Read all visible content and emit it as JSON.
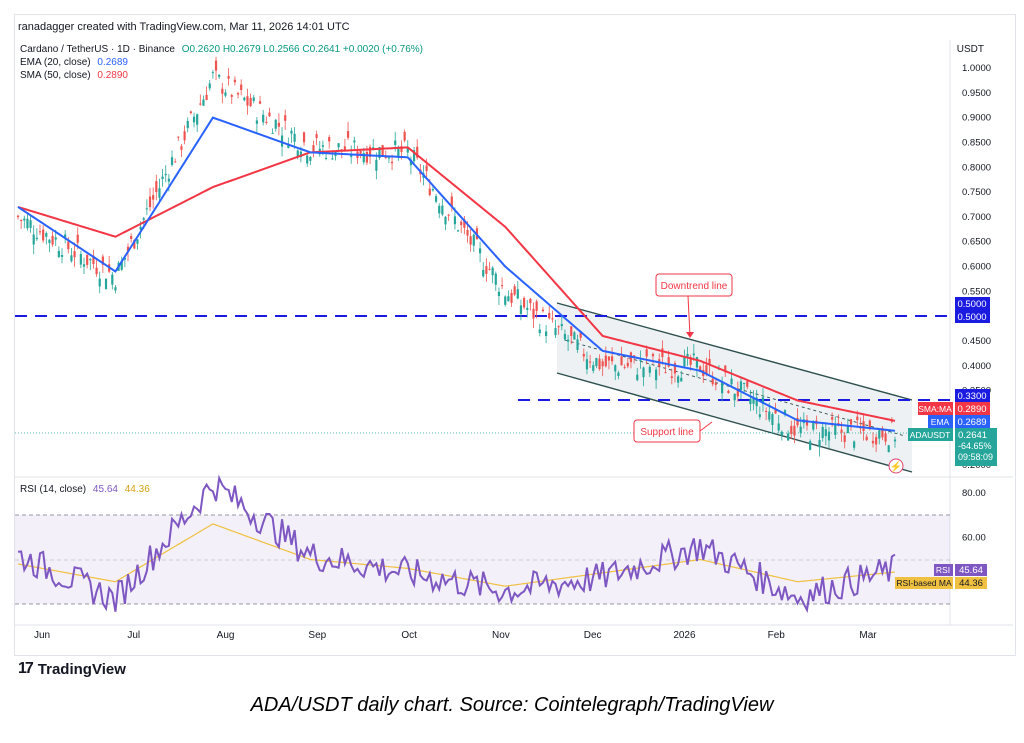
{
  "header": {
    "meta": "ranadagger created with TradingView.com, Mar 11, 2026 14:01 UTC"
  },
  "legend": {
    "symbol": "Cardano / TetherUS · 1D · Binance",
    "ohlc": "O0.2620 H0.2679 L0.2566 C0.2641 +0.0020 (+0.76%)",
    "ema_label": "EMA (20, close)",
    "ema_value": "0.2689",
    "sma_label": "SMA (50, close)",
    "sma_value": "0.2890",
    "rsi_label": "RSI (14, close)",
    "rsi_value": "45.64",
    "rsi_ma_value": "44.36"
  },
  "price_axis": {
    "unit": "USDT",
    "ticks": [
      "1.0000",
      "0.9500",
      "0.9000",
      "0.8500",
      "0.8000",
      "0.7500",
      "0.7000",
      "0.6500",
      "0.6000",
      "0.5500",
      "0.4500",
      "0.4000",
      "0.3500",
      "0.2500",
      "0.2000"
    ]
  },
  "rsi_axis": {
    "ticks": [
      "80.00",
      "60.00"
    ]
  },
  "time_axis": {
    "labels": [
      "Jun",
      "Jul",
      "Aug",
      "Sep",
      "Oct",
      "Nov",
      "Dec",
      "2026",
      "Feb",
      "Mar"
    ]
  },
  "price_tags": {
    "level_050_a": "0.5000",
    "level_050_b": "0.5000",
    "level_033": "0.3300",
    "sma_tag_name": "SMA:MA",
    "sma_tag_value": "0.2890",
    "ema_tag_name": "EMA",
    "ema_tag_value": "0.2689",
    "symbol_tag_name": "ADAUSDT",
    "symbol_tag_value": "0.2641",
    "symbol_tag_change": "-64.65%",
    "countdown": "09:58:09",
    "rsi_tag_name": "RSI",
    "rsi_tag_value": "45.64",
    "rsi_ma_tag_name": "RSI-based MA",
    "rsi_ma_tag_value": "44.36"
  },
  "annotations": {
    "downtrend": "Downtrend line",
    "support": "Support line"
  },
  "brand": {
    "name": "TradingView"
  },
  "caption": "ADA/USDT daily chart. Source: Cointelegraph/TradingView",
  "colors": {
    "up": "#26a69a",
    "down": "#ef5350",
    "ema": "#2962ff",
    "sma": "#f23645",
    "rsi": "#7e57c2",
    "rsi_ma": "#f0c040",
    "level": "#1a1ae0",
    "channel": "#2e4f4f"
  },
  "chart_data": [
    {
      "type": "line",
      "x": [
        "Jun",
        "Jul",
        "Aug",
        "Sep",
        "Oct",
        "Nov",
        "Dec",
        "2026",
        "Feb",
        "Mar"
      ],
      "series": [
        {
          "name": "ADAUSDT",
          "values": [
            0.7,
            0.58,
            0.98,
            0.84,
            0.83,
            0.55,
            0.4,
            0.4,
            0.27,
            0.264
          ]
        },
        {
          "name": "EMA",
          "values": [
            0.72,
            0.59,
            0.9,
            0.83,
            0.82,
            0.6,
            0.43,
            0.39,
            0.29,
            0.2689
          ]
        },
        {
          "name": "SMA:MA",
          "values": [
            0.72,
            0.66,
            0.76,
            0.83,
            0.84,
            0.68,
            0.46,
            0.41,
            0.33,
            0.289
          ]
        }
      ],
      "ylim": [
        0.18,
        1.03
      ],
      "horizontal_levels": [
        0.5,
        0.33
      ],
      "ylabel": "USDT"
    },
    {
      "type": "line",
      "x": [
        "Jun",
        "Jul",
        "Aug",
        "Sep",
        "Oct",
        "Nov",
        "Dec",
        "2026",
        "Feb",
        "Mar"
      ],
      "series": [
        {
          "name": "RSI",
          "values": [
            52,
            32,
            84,
            52,
            44,
            36,
            42,
            56,
            33,
            45.64
          ]
        },
        {
          "name": "RSI-based MA",
          "values": [
            48,
            40,
            66,
            50,
            46,
            38,
            44,
            50,
            40,
            44.36
          ]
        }
      ],
      "ylim": [
        20,
        90
      ],
      "bands": [
        30,
        70
      ]
    }
  ]
}
